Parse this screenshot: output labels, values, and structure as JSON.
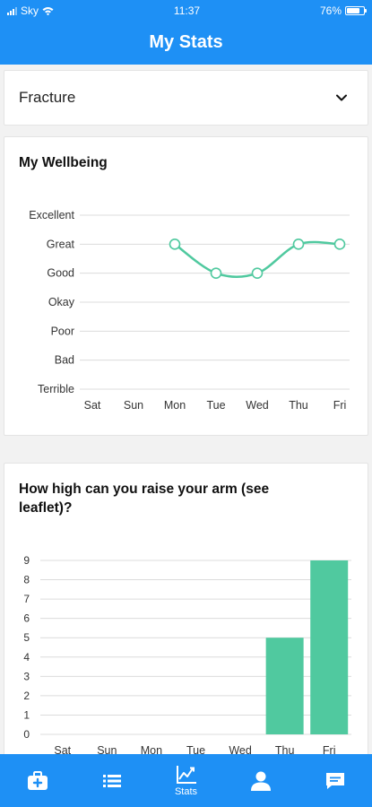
{
  "status_bar": {
    "carrier": "Sky",
    "time": "11:37",
    "battery": "76%"
  },
  "header": {
    "title": "My Stats"
  },
  "condition_select": {
    "value": "Fracture"
  },
  "wellbeing": {
    "title": "My Wellbeing",
    "chart_data": {
      "type": "line",
      "categories": [
        "Sat",
        "Sun",
        "Mon",
        "Tue",
        "Wed",
        "Thu",
        "Fri"
      ],
      "y_categories": [
        "Terrible",
        "Bad",
        "Poor",
        "Okay",
        "Good",
        "Great",
        "Excellent"
      ],
      "values": [
        null,
        null,
        5,
        4,
        4,
        5,
        5
      ],
      "color": "#50c99f",
      "grid": true
    }
  },
  "arm_raise": {
    "title": "How high can you raise your arm (see leaflet)?",
    "chart_data": {
      "type": "bar",
      "categories": [
        "Sat",
        "Sun",
        "Mon",
        "Tue",
        "Wed",
        "Thu",
        "Fri"
      ],
      "values": [
        0,
        0,
        0,
        0,
        0,
        5,
        9
      ],
      "ylim": [
        0,
        9
      ],
      "yticks": [
        0,
        1,
        2,
        3,
        4,
        5,
        6,
        7,
        8,
        9
      ],
      "color": "#50c99f",
      "grid": true
    }
  },
  "tabbar": {
    "tabs": [
      {
        "icon": "medical-kit-icon",
        "label": ""
      },
      {
        "icon": "list-icon",
        "label": ""
      },
      {
        "icon": "chart-icon",
        "label": "Stats",
        "active": true
      },
      {
        "icon": "profile-icon",
        "label": ""
      },
      {
        "icon": "chat-icon",
        "label": ""
      }
    ]
  }
}
